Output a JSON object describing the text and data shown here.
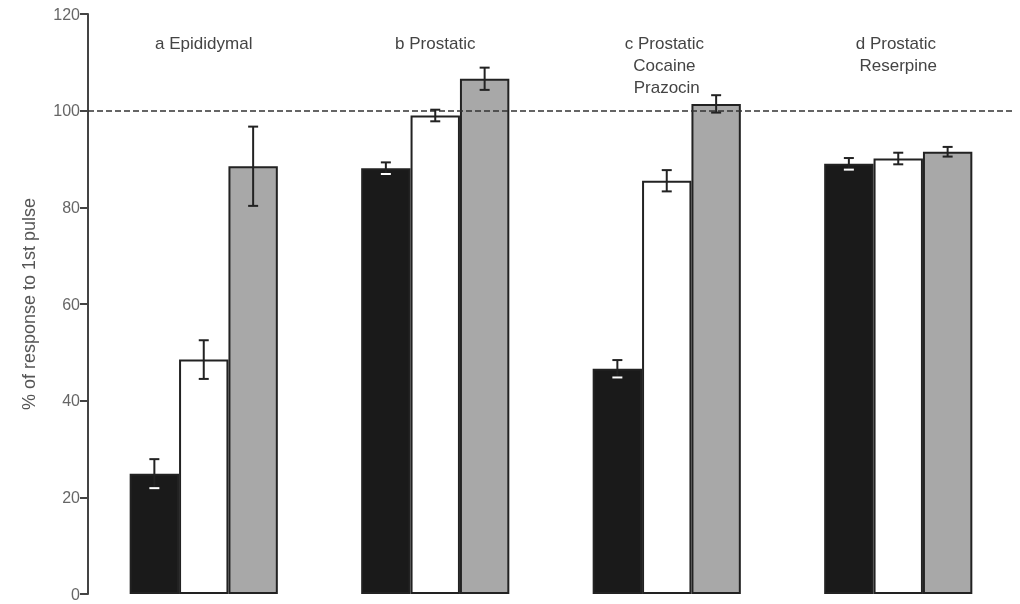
{
  "chart_data": {
    "type": "bar",
    "ylabel": "% of response to 1st pulse",
    "categories": [
      "a Epididymal",
      "b Prostatic",
      "c Prostatic Cocaine Prazocin",
      "d Prostatic Reserpine"
    ],
    "series": [
      {
        "color": "#1a1a1a",
        "values": [
          24.9,
          88.1,
          46.6,
          89
        ],
        "errors": [
          3,
          1.2,
          1.8,
          1.2
        ]
      },
      {
        "color": "#ffffff",
        "values": [
          48.5,
          99,
          85.5,
          90.1
        ],
        "errors": [
          4,
          1.2,
          2.2,
          1.2
        ]
      },
      {
        "color": "#a8a8a8",
        "values": [
          88.5,
          106.6,
          101.4,
          91.5
        ],
        "errors": [
          8.2,
          2.3,
          1.8,
          1
        ]
      }
    ],
    "ylim": [
      0,
      120
    ],
    "yticks": [
      0,
      20,
      40,
      60,
      80,
      100,
      120
    ],
    "ref_lines": [
      {
        "axis": "y",
        "value": 100,
        "line_style": "dashed",
        "color": "#333333"
      }
    ],
    "grid": false
  }
}
